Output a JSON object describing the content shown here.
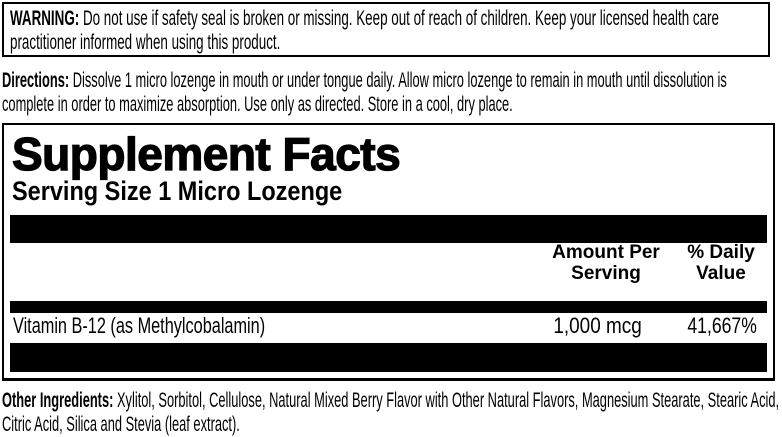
{
  "page": {
    "background_color": "#ffffff",
    "ink_color": "#000000"
  },
  "warning": {
    "label": "WARNING:",
    "text": "Do not use if safety seal is broken or missing. Keep out of reach of children. Keep your licensed health care practitioner informed when using this product."
  },
  "directions": {
    "label": "Directions:",
    "text": "Dissolve 1 micro lozenge in mouth or under tongue daily. Allow micro lozenge to remain in mouth until dissolution is complete in order to maximize absorption. Use only as directed. Store in a cool, dry place."
  },
  "supplement_facts": {
    "title": "Supplement Facts",
    "serving_size": "Serving Size 1 Micro Lozenge",
    "columns": {
      "amount_header": "Amount Per Serving",
      "daily_value_header": "% Daily Value"
    },
    "rows": [
      {
        "name": "Vitamin B-12 (as Methylcobalamin)",
        "amount": "1,000 mcg",
        "daily_value": "41,667%"
      }
    ]
  },
  "other_ingredients": {
    "label": "Other Ingredients:",
    "text": "Xylitol, Sorbitol, Cellulose, Natural Mixed Berry Flavor with Other Natural Flavors, Magnesium Stearate, Stearic Acid, Citric Acid, Silica and Stevia (leaf extract)."
  }
}
